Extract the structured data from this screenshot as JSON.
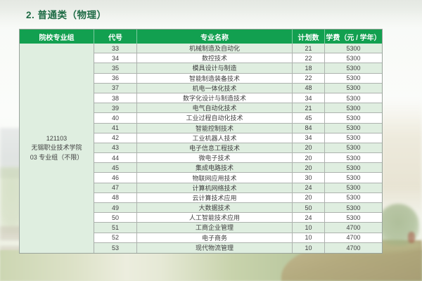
{
  "page": {
    "title": "2. 普通类（物理）"
  },
  "colors": {
    "header_bg": "#12a050",
    "alt_row_bg": "#dfeee0",
    "title_color": "#1e6b45"
  },
  "table": {
    "headers": {
      "group": "院校专业组",
      "code": "代号",
      "major": "专业名称",
      "plan": "计划数",
      "fee": "学费（元 / 学年）"
    },
    "group_cell": {
      "college_code": "121103",
      "college_name": "无锡职业技术学院",
      "group_label": "03 专业组（不限）"
    },
    "rows": [
      {
        "code": "33",
        "major": "机械制造及自动化",
        "plan": "21",
        "fee": "5300"
      },
      {
        "code": "34",
        "major": "数控技术",
        "plan": "22",
        "fee": "5300"
      },
      {
        "code": "35",
        "major": "模具设计与制造",
        "plan": "18",
        "fee": "5300"
      },
      {
        "code": "36",
        "major": "智能制造装备技术",
        "plan": "22",
        "fee": "5300"
      },
      {
        "code": "37",
        "major": "机电一体化技术",
        "plan": "48",
        "fee": "5300"
      },
      {
        "code": "38",
        "major": "数字化设计与制造技术",
        "plan": "34",
        "fee": "5300"
      },
      {
        "code": "39",
        "major": "电气自动化技术",
        "plan": "21",
        "fee": "5300"
      },
      {
        "code": "40",
        "major": "工业过程自动化技术",
        "plan": "45",
        "fee": "5300"
      },
      {
        "code": "41",
        "major": "智能控制技术",
        "plan": "84",
        "fee": "5300"
      },
      {
        "code": "42",
        "major": "工业机器人技术",
        "plan": "34",
        "fee": "5300"
      },
      {
        "code": "43",
        "major": "电子信息工程技术",
        "plan": "20",
        "fee": "5300"
      },
      {
        "code": "44",
        "major": "微电子技术",
        "plan": "20",
        "fee": "5300"
      },
      {
        "code": "45",
        "major": "集成电路技术",
        "plan": "20",
        "fee": "5300"
      },
      {
        "code": "46",
        "major": "物联网应用技术",
        "plan": "30",
        "fee": "5300"
      },
      {
        "code": "47",
        "major": "计算机网络技术",
        "plan": "24",
        "fee": "5300"
      },
      {
        "code": "48",
        "major": "云计算技术应用",
        "plan": "20",
        "fee": "5300"
      },
      {
        "code": "49",
        "major": "大数据技术",
        "plan": "50",
        "fee": "5300"
      },
      {
        "code": "50",
        "major": "人工智能技术应用",
        "plan": "24",
        "fee": "5300"
      },
      {
        "code": "51",
        "major": "工商企业管理",
        "plan": "10",
        "fee": "4700"
      },
      {
        "code": "52",
        "major": "电子商务",
        "plan": "10",
        "fee": "4700"
      },
      {
        "code": "53",
        "major": "现代物流管理",
        "plan": "10",
        "fee": "4700"
      }
    ]
  }
}
